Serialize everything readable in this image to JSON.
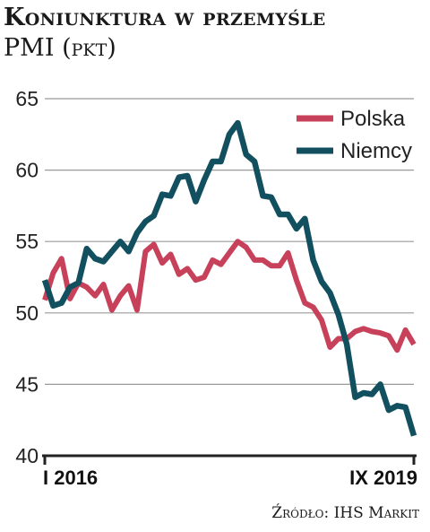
{
  "chart_data": {
    "type": "line",
    "title": "Koniunktura w przemyśle",
    "subtitle_main": "PMI",
    "subtitle_unit": "(pkt)",
    "source": "Źródło: IHS Markit",
    "ylim": [
      40,
      65
    ],
    "yticks": [
      40,
      45,
      50,
      55,
      60,
      65
    ],
    "x_tick_labels": [
      "I 2016",
      "IX 2019"
    ],
    "x_count": 45,
    "grid": true,
    "legend_position": "top-right",
    "series": [
      {
        "name": "Polska",
        "color": "#c8415a",
        "values": [
          50.9,
          52.8,
          53.8,
          51.0,
          52.1,
          51.8,
          51.2,
          52.0,
          50.2,
          51.2,
          51.9,
          50.2,
          54.3,
          54.8,
          53.5,
          54.1,
          52.7,
          53.1,
          52.3,
          52.5,
          53.7,
          53.4,
          54.2,
          55.0,
          54.6,
          53.7,
          53.7,
          53.3,
          53.3,
          54.2,
          52.3,
          50.7,
          50.4,
          49.5,
          47.6,
          48.2,
          48.2,
          48.7,
          48.9,
          48.7,
          48.6,
          48.4,
          47.4,
          48.8,
          47.8
        ]
      },
      {
        "name": "Niemcy",
        "color": "#12505f",
        "values": [
          52.3,
          50.5,
          50.7,
          51.8,
          52.1,
          54.5,
          53.8,
          53.6,
          54.3,
          55.0,
          54.3,
          55.6,
          56.4,
          56.8,
          58.3,
          58.2,
          59.5,
          59.6,
          57.8,
          59.3,
          60.6,
          60.6,
          62.5,
          63.3,
          61.1,
          60.6,
          58.2,
          58.1,
          56.9,
          56.9,
          55.9,
          56.6,
          53.7,
          52.2,
          51.4,
          49.9,
          47.8,
          44.1,
          44.4,
          44.3,
          45.0,
          43.2,
          43.5,
          43.4,
          41.4
        ]
      }
    ]
  }
}
